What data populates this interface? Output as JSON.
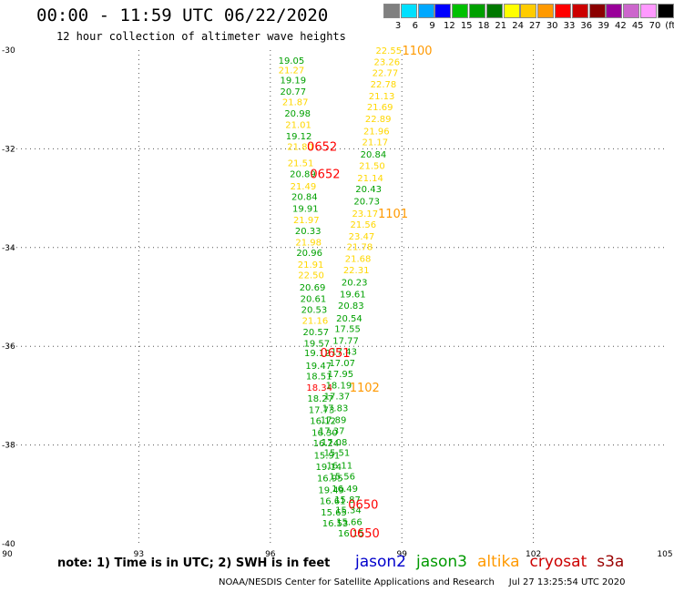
{
  "header": {
    "title": "00:00 - 11:59 UTC 06/22/2020",
    "subtitle": "12 hour collection of altimeter wave heights"
  },
  "colorbar": {
    "labels": [
      "3",
      "6",
      "9",
      "12",
      "15",
      "18",
      "21",
      "24",
      "27",
      "30",
      "33",
      "36",
      "39",
      "42",
      "45",
      "70",
      "(ft)"
    ],
    "colors": [
      "#808080",
      "#00e0ff",
      "#00a8ff",
      "#0000ff",
      "#00c000",
      "#00a000",
      "#007800",
      "#ffff00",
      "#ffcc00",
      "#ff9900",
      "#ff0000",
      "#cc0000",
      "#8b0000",
      "#990099",
      "#cc66cc",
      "#ff99ff",
      "#000000"
    ]
  },
  "footer": {
    "note": "note: 1) Time is in UTC; 2) SWH is in feet",
    "credit": "NOAA/NESDIS Center for Satellite Applications and Research     Jul 27 13:25:54 UTC 2020"
  },
  "legend": [
    {
      "name": "jason2",
      "color": "#0000cc"
    },
    {
      "name": "jason3",
      "color": "#009900"
    },
    {
      "name": "altika",
      "color": "#ff9900"
    },
    {
      "name": "cryosat",
      "color": "#cc0000"
    },
    {
      "name": "s3a",
      "color": "#990000"
    }
  ],
  "chart_data": {
    "type": "scatter",
    "title": "00:00 - 11:59 UTC 06/22/2020",
    "xlim": [
      90,
      105
    ],
    "ylim": [
      -40,
      -30
    ],
    "xticks": [
      "90",
      "93",
      "96",
      "99",
      "102",
      "105"
    ],
    "yticks": [
      "-30",
      "-32",
      "-34",
      "-36",
      "-38",
      "-40"
    ],
    "xtick_values": [
      90,
      93,
      96,
      99,
      102,
      105
    ],
    "ytick_values": [
      -30,
      -32,
      -34,
      -36,
      -38,
      -40
    ],
    "grid": true,
    "colors": {
      "green": "#00a000",
      "yellow": "#ffd700",
      "orange": "#ff9900",
      "red": "#ff0000"
    },
    "points": [
      {
        "x": 96.48,
        "y": -30.2,
        "label": "19.05",
        "color": "green"
      },
      {
        "x": 96.48,
        "y": -30.4,
        "label": "21.27",
        "color": "yellow"
      },
      {
        "x": 96.52,
        "y": -30.6,
        "label": "19.19",
        "color": "green"
      },
      {
        "x": 96.52,
        "y": -30.83,
        "label": "20.77",
        "color": "green"
      },
      {
        "x": 96.57,
        "y": -31.04,
        "label": "21.87",
        "color": "yellow"
      },
      {
        "x": 96.62,
        "y": -31.27,
        "label": "20.98",
        "color": "green"
      },
      {
        "x": 96.64,
        "y": -31.5,
        "label": "21.01",
        "color": "yellow"
      },
      {
        "x": 96.65,
        "y": -31.73,
        "label": "19.12",
        "color": "green"
      },
      {
        "x": 96.68,
        "y": -31.95,
        "label": "21.80",
        "color": "yellow"
      },
      {
        "x": 96.69,
        "y": -32.28,
        "label": "21.51",
        "color": "yellow"
      },
      {
        "x": 96.74,
        "y": -32.5,
        "label": "20.89",
        "color": "green"
      },
      {
        "x": 96.75,
        "y": -32.75,
        "label": "21.49",
        "color": "yellow"
      },
      {
        "x": 96.78,
        "y": -32.96,
        "label": "20.84",
        "color": "green"
      },
      {
        "x": 96.8,
        "y": -33.2,
        "label": "19.91",
        "color": "green"
      },
      {
        "x": 96.82,
        "y": -33.43,
        "label": "21.97",
        "color": "yellow"
      },
      {
        "x": 96.86,
        "y": -33.65,
        "label": "20.33",
        "color": "green"
      },
      {
        "x": 96.87,
        "y": -33.88,
        "label": "21.98",
        "color": "yellow"
      },
      {
        "x": 96.89,
        "y": -34.1,
        "label": "20.96",
        "color": "green"
      },
      {
        "x": 96.92,
        "y": -34.34,
        "label": "21.91",
        "color": "yellow"
      },
      {
        "x": 96.93,
        "y": -34.55,
        "label": "22.50",
        "color": "yellow"
      },
      {
        "x": 96.96,
        "y": -34.8,
        "label": "20.69",
        "color": "green"
      },
      {
        "x": 96.98,
        "y": -35.03,
        "label": "20.61",
        "color": "green"
      },
      {
        "x": 97.0,
        "y": -35.25,
        "label": "20.53",
        "color": "green"
      },
      {
        "x": 97.02,
        "y": -35.47,
        "label": "21.16",
        "color": "yellow"
      },
      {
        "x": 97.04,
        "y": -35.7,
        "label": "20.57",
        "color": "green"
      },
      {
        "x": 97.06,
        "y": -35.93,
        "label": "19.57",
        "color": "green"
      },
      {
        "x": 97.07,
        "y": -36.13,
        "label": "19.12",
        "color": "green"
      },
      {
        "x": 97.1,
        "y": -36.38,
        "label": "19.47",
        "color": "green"
      },
      {
        "x": 97.11,
        "y": -36.6,
        "label": "18.51",
        "color": "green"
      },
      {
        "x": 97.12,
        "y": -36.83,
        "label": "18.34",
        "color": "red"
      },
      {
        "x": 97.14,
        "y": -37.05,
        "label": "18.27",
        "color": "green"
      },
      {
        "x": 97.17,
        "y": -37.28,
        "label": "17.73",
        "color": "green"
      },
      {
        "x": 97.2,
        "y": -37.5,
        "label": "16.12",
        "color": "green"
      },
      {
        "x": 97.24,
        "y": -37.74,
        "label": "16.30",
        "color": "green"
      },
      {
        "x": 97.27,
        "y": -37.95,
        "label": "16.24",
        "color": "green"
      },
      {
        "x": 97.29,
        "y": -38.2,
        "label": "15.91",
        "color": "green"
      },
      {
        "x": 97.33,
        "y": -38.43,
        "label": "19.14",
        "color": "green"
      },
      {
        "x": 97.36,
        "y": -38.66,
        "label": "16.95",
        "color": "green"
      },
      {
        "x": 97.39,
        "y": -38.9,
        "label": "19.49",
        "color": "green"
      },
      {
        "x": 97.42,
        "y": -39.12,
        "label": "16.61",
        "color": "green"
      },
      {
        "x": 97.45,
        "y": -39.35,
        "label": "15.65",
        "color": "green"
      },
      {
        "x": 97.48,
        "y": -39.58,
        "label": "16.53",
        "color": "green"
      },
      {
        "x": 98.7,
        "y": -30.0,
        "label": "22.55",
        "color": "yellow"
      },
      {
        "x": 98.66,
        "y": -30.23,
        "label": "23.26",
        "color": "yellow"
      },
      {
        "x": 98.62,
        "y": -30.45,
        "label": "22.77",
        "color": "yellow"
      },
      {
        "x": 98.58,
        "y": -30.68,
        "label": "22.78",
        "color": "yellow"
      },
      {
        "x": 98.54,
        "y": -30.92,
        "label": "21.13",
        "color": "yellow"
      },
      {
        "x": 98.5,
        "y": -31.14,
        "label": "21.69",
        "color": "yellow"
      },
      {
        "x": 98.46,
        "y": -31.38,
        "label": "22.89",
        "color": "yellow"
      },
      {
        "x": 98.42,
        "y": -31.63,
        "label": "21.96",
        "color": "yellow"
      },
      {
        "x": 98.39,
        "y": -31.85,
        "label": "21.17",
        "color": "yellow"
      },
      {
        "x": 98.35,
        "y": -32.1,
        "label": "20.84",
        "color": "green"
      },
      {
        "x": 98.32,
        "y": -32.33,
        "label": "21.50",
        "color": "yellow"
      },
      {
        "x": 98.28,
        "y": -32.58,
        "label": "21.14",
        "color": "yellow"
      },
      {
        "x": 98.24,
        "y": -32.8,
        "label": "20.43",
        "color": "green"
      },
      {
        "x": 98.2,
        "y": -33.05,
        "label": "20.73",
        "color": "green"
      },
      {
        "x": 98.16,
        "y": -33.3,
        "label": "23.17",
        "color": "yellow"
      },
      {
        "x": 98.12,
        "y": -33.52,
        "label": "21.56",
        "color": "yellow"
      },
      {
        "x": 98.08,
        "y": -33.76,
        "label": "23.47",
        "color": "yellow"
      },
      {
        "x": 98.04,
        "y": -33.98,
        "label": "21.78",
        "color": "yellow"
      },
      {
        "x": 98.0,
        "y": -34.22,
        "label": "21.68",
        "color": "yellow"
      },
      {
        "x": 97.96,
        "y": -34.45,
        "label": "22.31",
        "color": "yellow"
      },
      {
        "x": 97.92,
        "y": -34.7,
        "label": "20.23",
        "color": "green"
      },
      {
        "x": 97.88,
        "y": -34.94,
        "label": "19.61",
        "color": "green"
      },
      {
        "x": 97.84,
        "y": -35.17,
        "label": "20.83",
        "color": "green"
      },
      {
        "x": 97.8,
        "y": -35.42,
        "label": "20.54",
        "color": "green"
      },
      {
        "x": 97.76,
        "y": -35.64,
        "label": "17.55",
        "color": "green"
      },
      {
        "x": 97.72,
        "y": -35.88,
        "label": "17.77",
        "color": "green"
      },
      {
        "x": 97.68,
        "y": -36.1,
        "label": "17.43",
        "color": "green"
      },
      {
        "x": 97.64,
        "y": -36.33,
        "label": "17.07",
        "color": "green"
      },
      {
        "x": 97.6,
        "y": -36.55,
        "label": "17.95",
        "color": "green"
      },
      {
        "x": 97.56,
        "y": -36.78,
        "label": "18.19",
        "color": "green"
      },
      {
        "x": 97.52,
        "y": -37.0,
        "label": "17.37",
        "color": "green"
      },
      {
        "x": 97.48,
        "y": -37.24,
        "label": "17.83",
        "color": "green"
      },
      {
        "x": 97.44,
        "y": -37.48,
        "label": "17.89",
        "color": "green"
      },
      {
        "x": 97.4,
        "y": -37.7,
        "label": "17.37",
        "color": "green"
      },
      {
        "x": 97.46,
        "y": -37.93,
        "label": "17.08",
        "color": "green"
      },
      {
        "x": 97.52,
        "y": -38.15,
        "label": "15.51",
        "color": "green"
      },
      {
        "x": 97.58,
        "y": -38.4,
        "label": "16.11",
        "color": "green"
      },
      {
        "x": 97.64,
        "y": -38.63,
        "label": "15.56",
        "color": "green"
      },
      {
        "x": 97.7,
        "y": -38.87,
        "label": "16.49",
        "color": "green"
      },
      {
        "x": 97.76,
        "y": -39.1,
        "label": "15.87",
        "color": "green"
      },
      {
        "x": 97.78,
        "y": -39.31,
        "label": "15.34",
        "color": "green"
      },
      {
        "x": 97.8,
        "y": -39.55,
        "label": "15.66",
        "color": "green"
      },
      {
        "x": 97.84,
        "y": -39.78,
        "label": "16.15",
        "color": "green"
      }
    ],
    "time_labels": [
      {
        "x": 99.35,
        "y": -30.0,
        "label": "1100",
        "color": "orange"
      },
      {
        "x": 97.18,
        "y": -31.95,
        "label": "0652",
        "color": "red"
      },
      {
        "x": 97.25,
        "y": -32.5,
        "label": "0652",
        "color": "red"
      },
      {
        "x": 98.8,
        "y": -33.3,
        "label": "1101",
        "color": "orange"
      },
      {
        "x": 97.48,
        "y": -36.13,
        "label": "0651",
        "color": "red"
      },
      {
        "x": 98.15,
        "y": -36.83,
        "label": "1102",
        "color": "orange"
      },
      {
        "x": 98.12,
        "y": -39.2,
        "label": "0650",
        "color": "red"
      },
      {
        "x": 98.15,
        "y": -39.78,
        "label": "0650",
        "color": "red"
      }
    ]
  }
}
